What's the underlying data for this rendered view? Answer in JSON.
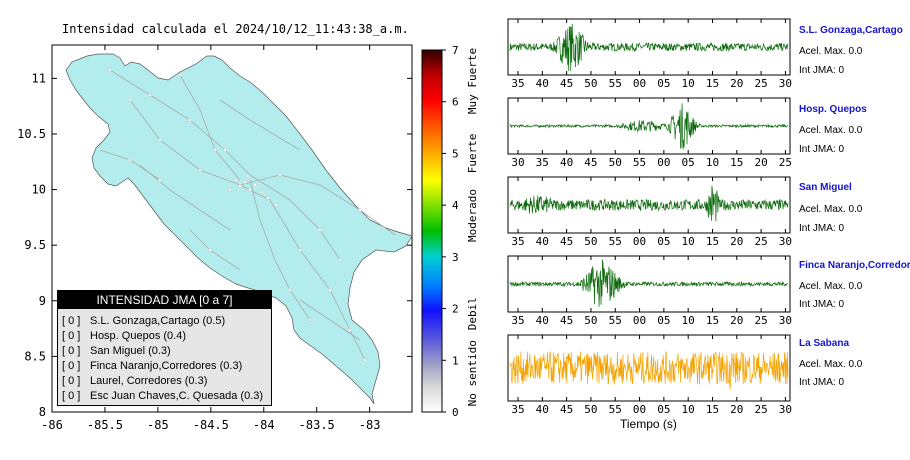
{
  "map_title": "Intensidad calculada el 2024/10/12_11:43:38_a.m.",
  "colors": {
    "land": "#b2ecec",
    "roads": "#aaaaaa",
    "wave_green": "#0b6a0b",
    "wave_orange": "#f5a200",
    "station_name": "#1515d0"
  },
  "legend": {
    "title": "INTENSIDAD JMA [0 a 7]",
    "rows": [
      {
        "level": "[ 0 ]",
        "text": "S.L. Gonzaga,Cartago (0.5)"
      },
      {
        "level": "[ 0 ]",
        "text": "Hosp. Quepos (0.4)"
      },
      {
        "level": "[ 0 ]",
        "text": "San Miguel (0.3)"
      },
      {
        "level": "[ 0 ]",
        "text": "Finca Naranjo,Corredores (0.3)"
      },
      {
        "level": "[ 0 ]",
        "text": "Laurel, Corredores (0.3)"
      },
      {
        "level": "[ 0 ]",
        "text": "Esc Juan Chaves,C. Quesada (0.3)"
      }
    ]
  },
  "colorbar": {
    "ticks": [
      "0",
      "1",
      "2",
      "3",
      "4",
      "5",
      "6",
      "7"
    ],
    "labels": [
      {
        "text": "No sentido",
        "value": 0.75
      },
      {
        "text": "Debil",
        "value": 1.9
      },
      {
        "text": "Moderado",
        "value": 3.8
      },
      {
        "text": "Fuerte",
        "value": 5.0
      },
      {
        "text": "Muy Fuerte",
        "value": 6.4
      }
    ]
  },
  "time_axis_label": "Tiempo (s)",
  "chart_data": [
    {
      "type": "map",
      "title": "Intensidad calculada el 2024/10/12_11:43:38_a.m.",
      "xlim": [
        -86,
        -82.6
      ],
      "ylim": [
        8,
        11.3
      ],
      "x_ticks": [
        "-86",
        "-85.5",
        "-85",
        "-84.5",
        "-84",
        "-83.5",
        "-83"
      ],
      "y_ticks": [
        "8",
        "8.5",
        "9",
        "9.5",
        "10",
        "10.5",
        "11"
      ]
    },
    {
      "type": "line",
      "station": "S.L. Gonzaga,Cartago",
      "acel_label": "Acel. Max. 0.0",
      "jma_label": "Int JMA: 0",
      "color": "#0b6a0b",
      "x_ticks": [
        "35",
        "40",
        "45",
        "50",
        "55",
        "00",
        "05",
        "10",
        "15",
        "20",
        "25",
        "30"
      ],
      "burst": [
        {
          "center": 0.22,
          "width": 0.05,
          "amp": 1.0
        }
      ],
      "noise": 0.16
    },
    {
      "type": "line",
      "station": "Hosp. Quepos",
      "acel_label": "Acel. Max. 0.0",
      "jma_label": "Int JMA: 0",
      "color": "#0b6a0b",
      "x_ticks": [
        "30",
        "35",
        "40",
        "45",
        "50",
        "55",
        "00",
        "05",
        "10",
        "15",
        "20",
        "25"
      ],
      "burst": [
        {
          "center": 0.62,
          "width": 0.04,
          "amp": 0.95
        },
        {
          "center": 0.48,
          "width": 0.08,
          "amp": 0.25
        }
      ],
      "noise": 0.05
    },
    {
      "type": "line",
      "station": "San Miguel",
      "acel_label": "Acel. Max. 0.0",
      "jma_label": "Int JMA: 0",
      "color": "#0b6a0b",
      "x_ticks": [
        "35",
        "40",
        "45",
        "50",
        "55",
        "00",
        "05",
        "10",
        "15",
        "20",
        "25",
        "30"
      ],
      "burst": [
        {
          "center": 0.73,
          "width": 0.02,
          "amp": 1.0
        },
        {
          "center": 0.1,
          "width": 0.08,
          "amp": 0.4
        }
      ],
      "noise": 0.22
    },
    {
      "type": "line",
      "station": "Finca Naranjo,Corredores",
      "acel_label": "Acel. Max. 0.0",
      "jma_label": "Int JMA: 0",
      "color": "#0b6a0b",
      "x_ticks": [
        "35",
        "40",
        "45",
        "50",
        "55",
        "00",
        "05",
        "10",
        "15",
        "20",
        "25",
        "30"
      ],
      "burst": [
        {
          "center": 0.33,
          "width": 0.06,
          "amp": 1.0
        }
      ],
      "noise": 0.08
    },
    {
      "type": "line",
      "station": "La Sabana",
      "acel_label": "Acel. Max. 0.0",
      "jma_label": "Int JMA: 0",
      "color": "#f5a200",
      "x_ticks": [
        "35",
        "40",
        "45",
        "50",
        "55",
        "00",
        "05",
        "10",
        "15",
        "20",
        "25",
        "30"
      ],
      "burst": [
        {
          "center": 0.8,
          "width": 0.02,
          "amp": 0.85
        }
      ],
      "noise": 0.55
    }
  ]
}
